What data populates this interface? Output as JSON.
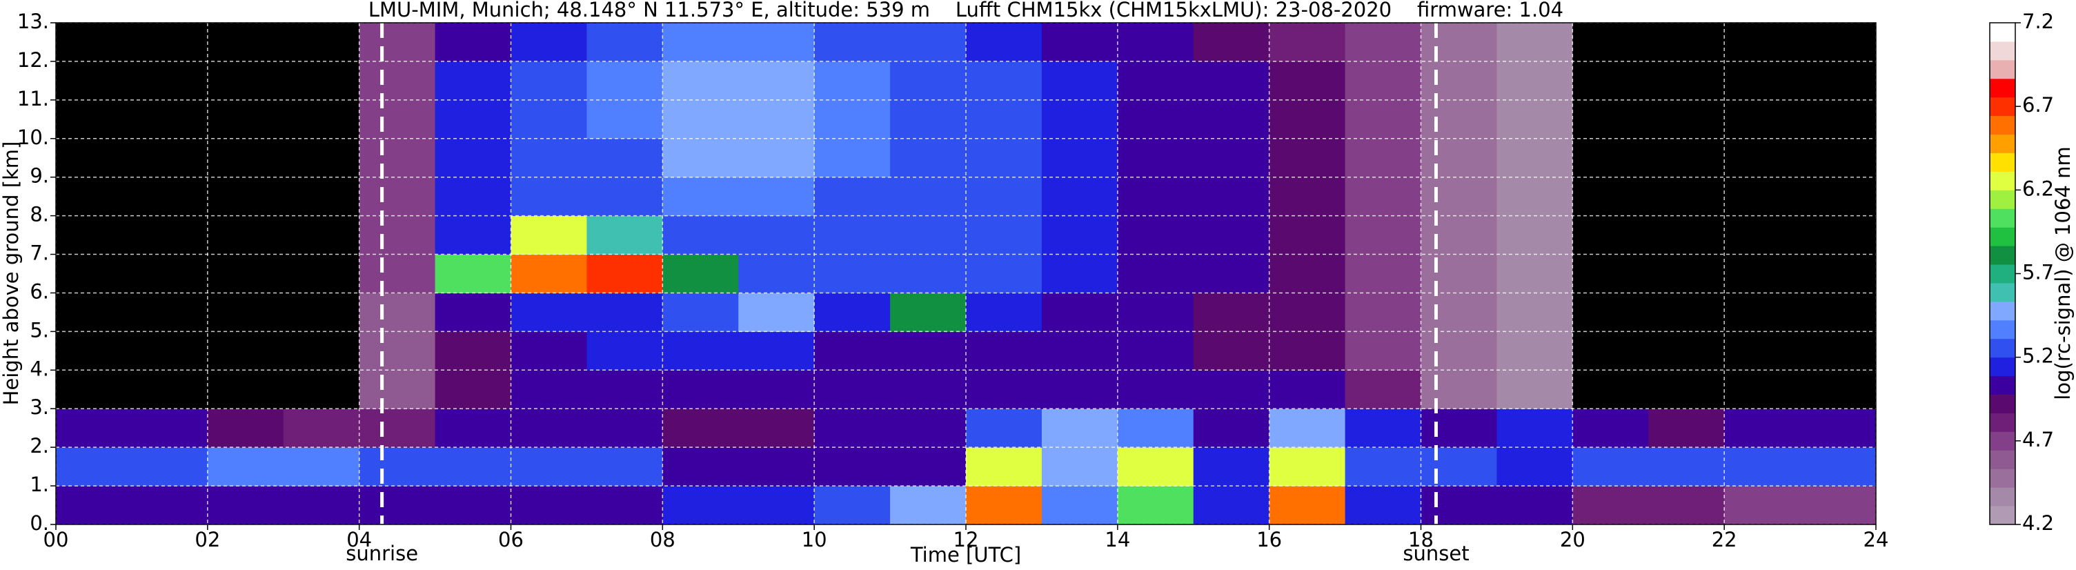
{
  "chart_data": {
    "type": "heatmap",
    "title": "LMU-MIM, Munich; 48.148° N 11.573° E, altitude: 539 m    Lufft CHM15kx (CHM15kxLMU): 23-08-2020    firmware: 1.04",
    "xlabel": "Time [UTC]",
    "ylabel": "Height above ground [km]",
    "xlim": [
      0,
      24
    ],
    "ylim": [
      0,
      13
    ],
    "xticks": [
      {
        "value": 0,
        "label": "00"
      },
      {
        "value": 2,
        "label": "02"
      },
      {
        "value": 4,
        "label": "04"
      },
      {
        "value": 6,
        "label": "06"
      },
      {
        "value": 8,
        "label": "08"
      },
      {
        "value": 10,
        "label": "10"
      },
      {
        "value": 12,
        "label": "12"
      },
      {
        "value": 14,
        "label": "14"
      },
      {
        "value": 16,
        "label": "16"
      },
      {
        "value": 18,
        "label": "18"
      },
      {
        "value": 20,
        "label": "20"
      },
      {
        "value": 22,
        "label": "22"
      },
      {
        "value": 24,
        "label": "24"
      }
    ],
    "yticks": [
      {
        "value": 0,
        "label": "0."
      },
      {
        "value": 1,
        "label": "1."
      },
      {
        "value": 2,
        "label": "2."
      },
      {
        "value": 3,
        "label": "3."
      },
      {
        "value": 4,
        "label": "4."
      },
      {
        "value": 5,
        "label": "5."
      },
      {
        "value": 6,
        "label": "6."
      },
      {
        "value": 7,
        "label": "7."
      },
      {
        "value": 8,
        "label": "8."
      },
      {
        "value": 9,
        "label": "9."
      },
      {
        "value": 10,
        "label": "10."
      },
      {
        "value": 11,
        "label": "11."
      },
      {
        "value": 12,
        "label": "12."
      },
      {
        "value": 13,
        "label": "13."
      }
    ],
    "grid": true,
    "x": [
      0.5,
      1.5,
      2.5,
      3.5,
      4.5,
      5.5,
      6.5,
      7.5,
      8.5,
      9.5,
      10.5,
      11.5,
      12.5,
      13.5,
      14.5,
      15.5,
      16.5,
      17.5,
      18.5,
      19.5,
      20.5,
      21.5,
      22.5,
      23.5
    ],
    "y": [
      0.5,
      1.5,
      2.5,
      3.5,
      4.5,
      5.5,
      6.5,
      7.5,
      8.5,
      9.5,
      10.5,
      11.5,
      12.5
    ],
    "z": [
      [
        5.0,
        5.0,
        5.0,
        5.0,
        5.0,
        5.0,
        5.0,
        5.0,
        5.1,
        5.1,
        5.2,
        5.5,
        6.6,
        5.4,
        6.0,
        5.1,
        6.6,
        5.1,
        5.0,
        5.0,
        4.8,
        4.8,
        4.7,
        4.7
      ],
      [
        5.2,
        5.3,
        5.4,
        5.4,
        5.3,
        5.3,
        5.3,
        5.3,
        5.0,
        5.0,
        5.0,
        5.0,
        6.2,
        5.5,
        6.2,
        5.1,
        6.3,
        5.3,
        5.3,
        5.1,
        5.2,
        5.3,
        5.2,
        5.2
      ],
      [
        5.0,
        5.0,
        4.9,
        4.8,
        4.8,
        5.0,
        5.0,
        5.0,
        4.9,
        4.9,
        5.0,
        5.0,
        5.3,
        5.5,
        5.4,
        5.0,
        5.5,
        5.1,
        5.0,
        5.1,
        5.0,
        4.9,
        5.0,
        5.0
      ],
      [
        4.0,
        4.0,
        4.0,
        4.0,
        4.6,
        4.9,
        5.0,
        5.0,
        5.0,
        5.0,
        5.0,
        5.0,
        5.0,
        5.0,
        5.0,
        5.0,
        5.0,
        4.8,
        4.5,
        4.4,
        4.0,
        4.0,
        4.0,
        4.0
      ],
      [
        4.0,
        4.0,
        4.0,
        4.0,
        4.6,
        4.9,
        5.0,
        5.1,
        5.1,
        5.1,
        5.0,
        5.0,
        5.0,
        5.0,
        5.0,
        4.9,
        4.9,
        4.7,
        4.5,
        4.4,
        4.0,
        4.0,
        4.0,
        4.0
      ],
      [
        4.0,
        4.0,
        4.0,
        4.0,
        4.6,
        5.0,
        5.1,
        5.1,
        5.2,
        5.5,
        5.1,
        5.8,
        5.1,
        5.0,
        5.0,
        4.9,
        4.9,
        4.7,
        4.5,
        4.4,
        4.0,
        4.0,
        4.0,
        4.0
      ],
      [
        4.0,
        4.0,
        4.0,
        4.0,
        4.7,
        6.0,
        6.6,
        6.7,
        5.8,
        5.3,
        5.2,
        5.2,
        5.2,
        5.1,
        5.0,
        5.0,
        4.9,
        4.7,
        4.5,
        4.4,
        4.0,
        4.0,
        4.0,
        4.0
      ],
      [
        4.0,
        4.0,
        4.0,
        4.0,
        4.7,
        5.1,
        6.2,
        5.6,
        5.3,
        5.3,
        5.3,
        5.2,
        5.2,
        5.1,
        5.0,
        5.0,
        4.9,
        4.7,
        4.5,
        4.4,
        4.0,
        4.0,
        4.0,
        4.0
      ],
      [
        4.0,
        4.0,
        4.0,
        4.0,
        4.7,
        5.1,
        5.2,
        5.3,
        5.4,
        5.4,
        5.3,
        5.3,
        5.2,
        5.1,
        5.0,
        5.0,
        4.9,
        4.7,
        4.5,
        4.4,
        4.0,
        4.0,
        4.0,
        4.0
      ],
      [
        4.0,
        4.0,
        4.0,
        4.0,
        4.7,
        5.1,
        5.2,
        5.3,
        5.5,
        5.5,
        5.4,
        5.3,
        5.2,
        5.1,
        5.0,
        5.0,
        4.9,
        4.7,
        4.5,
        4.4,
        4.0,
        4.0,
        4.0,
        4.0
      ],
      [
        4.0,
        4.0,
        4.0,
        4.0,
        4.7,
        5.1,
        5.2,
        5.4,
        5.5,
        5.5,
        5.4,
        5.3,
        5.2,
        5.1,
        5.0,
        5.0,
        4.9,
        4.7,
        4.5,
        4.4,
        4.0,
        4.0,
        4.0,
        4.0
      ],
      [
        4.0,
        4.0,
        4.0,
        4.0,
        4.7,
        5.1,
        5.2,
        5.4,
        5.5,
        5.5,
        5.4,
        5.3,
        5.2,
        5.1,
        5.0,
        5.0,
        4.9,
        4.7,
        4.5,
        4.4,
        4.0,
        4.0,
        4.0,
        4.0
      ],
      [
        4.0,
        4.0,
        4.0,
        4.0,
        4.7,
        5.0,
        5.1,
        5.3,
        5.4,
        5.4,
        5.3,
        5.2,
        5.1,
        5.0,
        5.0,
        4.9,
        4.8,
        4.7,
        4.5,
        4.4,
        4.0,
        4.0,
        4.0,
        4.0
      ]
    ],
    "clim": [
      4.2,
      7.2
    ],
    "cticks": [
      4.2,
      4.7,
      5.2,
      5.7,
      6.2,
      6.7,
      7.2
    ],
    "colorbar_label": "log(rc-signal) @ 1064 nm",
    "under_color": "#000000",
    "colormap": [
      "#b09ab4",
      "#a589a8",
      "#9a6f9c",
      "#8e5a91",
      "#833f87",
      "#6f1f78",
      "#5a0a6e",
      "#3d00a0",
      "#2020e0",
      "#3050f0",
      "#5080ff",
      "#80a8ff",
      "#40c0b0",
      "#20b080",
      "#109040",
      "#20c040",
      "#50e060",
      "#a0f040",
      "#e0ff40",
      "#ffe000",
      "#ffa000",
      "#ff7000",
      "#ff3000",
      "#ff0000",
      "#e8b0b0",
      "#f0d8d8",
      "#ffffff"
    ],
    "annotations": [
      {
        "x": 4.3,
        "label": "sunrise"
      },
      {
        "x": 18.2,
        "label": "sunset"
      }
    ]
  }
}
